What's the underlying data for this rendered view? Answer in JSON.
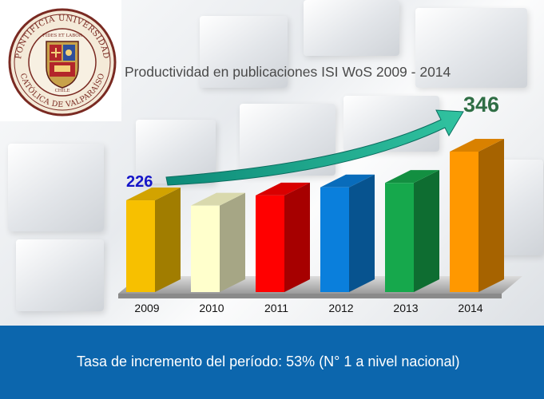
{
  "colors": {
    "band": "#0c66ad",
    "arrow": "#1aa389",
    "start_label": "#1515c8",
    "end_label": "#2f6e45"
  },
  "logo": {
    "text_top": "PONTIFICIA UNIVERSIDAD",
    "text_bottom": "CATÓLICA DE VALPARAÍSO",
    "motto": "FIDES ET LABOR",
    "country": "CHILE"
  },
  "chart_data": {
    "type": "bar",
    "title": "Productividad en publicaciones ISI WoS 2009 - 2014",
    "categories": [
      "2009",
      "2010",
      "2011",
      "2012",
      "2013",
      "2014"
    ],
    "values": [
      226,
      213,
      238,
      258,
      269,
      346
    ],
    "bar_colors": [
      "#f7c000",
      "#ffffcc",
      "#ff0000",
      "#0a7fdc",
      "#16a84c",
      "#ff9800"
    ],
    "annotations": {
      "start": "226",
      "end": "346"
    },
    "xlabel": "",
    "ylabel": "",
    "ylim": [
      0,
      400
    ],
    "grid": false,
    "legend": "none"
  },
  "footnote": "Tasa de incremento del período: 53% (N° 1 a nivel nacional)"
}
